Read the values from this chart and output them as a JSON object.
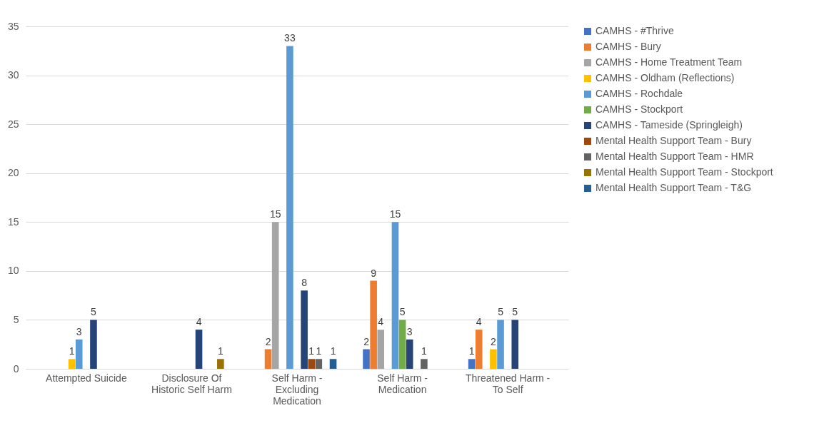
{
  "chart_data": {
    "type": "bar",
    "categories": [
      "Attempted Suicide",
      "Disclosure Of Historic Self Harm",
      "Self Harm - Excluding Medication",
      "Self Harm - Medication",
      "Threatened Harm - To Self"
    ],
    "series": [
      {
        "name": "CAMHS - #Thrive",
        "color": "#4472c4",
        "values": [
          null,
          null,
          null,
          2,
          1
        ]
      },
      {
        "name": "CAMHS - Bury",
        "color": "#ed7d31",
        "values": [
          null,
          null,
          2,
          9,
          4
        ]
      },
      {
        "name": "CAMHS - Home Treatment Team",
        "color": "#a5a5a5",
        "values": [
          null,
          null,
          15,
          4,
          null
        ]
      },
      {
        "name": "CAMHS - Oldham (Reflections)",
        "color": "#ffc000",
        "values": [
          1,
          null,
          null,
          null,
          2
        ]
      },
      {
        "name": "CAMHS - Rochdale",
        "color": "#5b9bd5",
        "values": [
          3,
          null,
          33,
          15,
          5
        ]
      },
      {
        "name": "CAMHS - Stockport",
        "color": "#70ad47",
        "values": [
          null,
          null,
          null,
          5,
          null
        ]
      },
      {
        "name": "CAMHS - Tameside (Springleigh)",
        "color": "#264478",
        "values": [
          5,
          4,
          8,
          3,
          5
        ]
      },
      {
        "name": "Mental Health Support Team - Bury",
        "color": "#9e480e",
        "values": [
          null,
          null,
          1,
          null,
          null
        ]
      },
      {
        "name": "Mental Health Support Team - HMR",
        "color": "#636363",
        "values": [
          null,
          null,
          1,
          1,
          null
        ]
      },
      {
        "name": "Mental Health Support Team - Stockport",
        "color": "#997300",
        "values": [
          null,
          1,
          null,
          null,
          null
        ]
      },
      {
        "name": "Mental Health Support Team - T&G",
        "color": "#255e91",
        "values": [
          null,
          null,
          1,
          null,
          null
        ]
      }
    ],
    "ylim": [
      0,
      35
    ],
    "yticks": [
      0,
      5,
      10,
      15,
      20,
      25,
      30,
      35
    ],
    "grid": "y",
    "legend": "right",
    "data_labels": true
  }
}
